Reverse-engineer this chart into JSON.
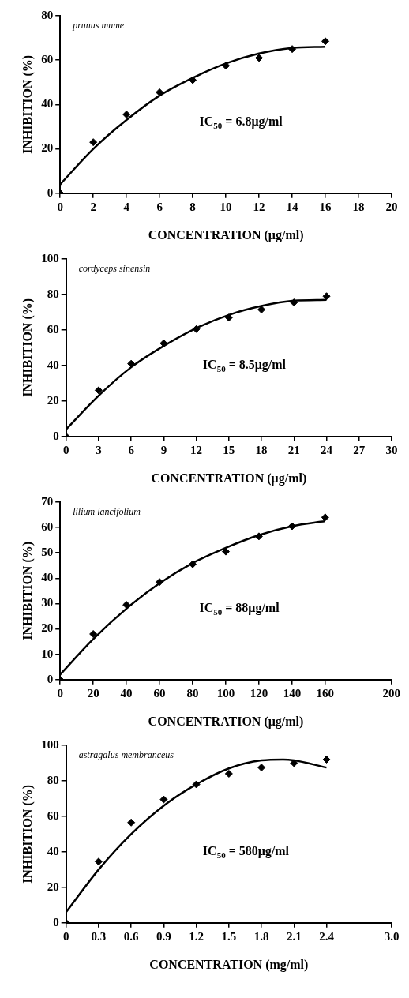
{
  "chart_data": [
    {
      "type": "scatter",
      "title": "prunus mume",
      "xlabel": "CONCENTRATION (μg/ml)",
      "ylabel": "INHIBITION (%)",
      "annotations": [
        "IC$_{50}$ = 6.8μg/ml"
      ],
      "xlim": [
        0,
        20
      ],
      "xticks": [
        0,
        2,
        4,
        6,
        8,
        10,
        12,
        14,
        16,
        18,
        20
      ],
      "ylim": [
        0,
        80
      ],
      "yticks": [
        0,
        20,
        40,
        60,
        80
      ],
      "grid": false,
      "legend": false,
      "series": [
        {
          "type": "scatter",
          "marker": "diamond",
          "color": "#000000",
          "x": [
            0,
            2,
            4,
            6,
            8,
            10,
            12,
            14,
            16
          ],
          "values": [
            0,
            23,
            35.5,
            45.5,
            51,
            57.5,
            61,
            65,
            68.5
          ]
        },
        {
          "type": "line",
          "marker": "none",
          "color": "#000000",
          "x": [
            0,
            2,
            4,
            6,
            8,
            10,
            12,
            14,
            16
          ],
          "values": [
            4,
            20,
            33,
            44,
            52,
            58.5,
            63,
            65.5,
            66
          ]
        }
      ]
    },
    {
      "type": "scatter",
      "title": "cordyceps sinensin",
      "xlabel": "CONCENTRATION (μg/ml)",
      "ylabel": "INHIBITION (%)",
      "annotations": [
        "IC$_{50}$ = 8.5μg/ml"
      ],
      "xlim": [
        0,
        30
      ],
      "xticks": [
        0,
        3,
        6,
        9,
        12,
        15,
        18,
        21,
        24,
        27,
        30
      ],
      "ylim": [
        0,
        100
      ],
      "yticks": [
        0,
        20,
        40,
        60,
        80,
        100
      ],
      "grid": false,
      "legend": false,
      "series": [
        {
          "type": "scatter",
          "marker": "diamond",
          "color": "#000000",
          "x": [
            0,
            3,
            6,
            9,
            12,
            15,
            18,
            21,
            24
          ],
          "values": [
            0,
            26,
            41,
            52.5,
            60.5,
            67,
            71.5,
            75.5,
            79
          ]
        },
        {
          "type": "line",
          "marker": "none",
          "color": "#000000",
          "x": [
            0,
            3,
            6,
            9,
            12,
            15,
            18,
            21,
            24
          ],
          "values": [
            4,
            23,
            39,
            51,
            61,
            68.5,
            73.5,
            76.5,
            77
          ]
        }
      ]
    },
    {
      "type": "scatter",
      "title": "lilium lancifolium",
      "xlabel": "CONCENTRATION (μg/ml)",
      "ylabel": "INHIBITION (%)",
      "annotations": [
        "IC$_{50}$ = 88μg/ml"
      ],
      "xlim": [
        0,
        200
      ],
      "xticks": [
        0,
        20,
        40,
        60,
        80,
        100,
        120,
        140,
        160,
        200
      ],
      "ylim": [
        0,
        70
      ],
      "yticks": [
        0,
        10,
        20,
        30,
        40,
        50,
        60,
        70
      ],
      "grid": false,
      "legend": false,
      "series": [
        {
          "type": "scatter",
          "marker": "diamond",
          "color": "#000000",
          "x": [
            0,
            20,
            40,
            60,
            80,
            100,
            120,
            140,
            160
          ],
          "values": [
            0,
            18,
            29.5,
            38.5,
            45.5,
            50.5,
            56.5,
            60.5,
            64
          ]
        },
        {
          "type": "line",
          "marker": "none",
          "color": "#000000",
          "x": [
            0,
            20,
            40,
            60,
            80,
            100,
            120,
            140,
            160
          ],
          "values": [
            2,
            16,
            28,
            38,
            46,
            52,
            57,
            60.5,
            62.5
          ]
        }
      ]
    },
    {
      "type": "scatter",
      "title": "astragalus membranceus",
      "xlabel": "CONCENTRATION (mg/ml)",
      "ylabel": "INHIBITION (%)",
      "annotations": [
        "IC$_{50}$ = 580μg/ml"
      ],
      "xlim": [
        0,
        3
      ],
      "xticks": [
        0,
        0.3,
        0.6,
        0.9,
        1.2,
        1.5,
        1.8,
        2.1,
        2.4,
        {
          "value": 3,
          "label": "3.0"
        }
      ],
      "ylim": [
        0,
        100
      ],
      "yticks": [
        0,
        20,
        40,
        60,
        80,
        100
      ],
      "grid": false,
      "legend": false,
      "series": [
        {
          "type": "scatter",
          "marker": "diamond",
          "color": "#000000",
          "x": [
            0,
            0.3,
            0.6,
            0.9,
            1.2,
            1.5,
            1.8,
            2.1,
            2.4
          ],
          "values": [
            0,
            34.5,
            56.5,
            69.5,
            78,
            84,
            87.5,
            90,
            92
          ]
        },
        {
          "type": "line",
          "marker": "none",
          "color": "#000000",
          "x": [
            0,
            0.3,
            0.6,
            0.9,
            1.2,
            1.5,
            1.8,
            2.0,
            2.1,
            2.4
          ],
          "values": [
            6,
            30,
            50,
            66,
            78,
            87,
            91.5,
            92,
            91.5,
            87.5
          ]
        }
      ]
    }
  ]
}
